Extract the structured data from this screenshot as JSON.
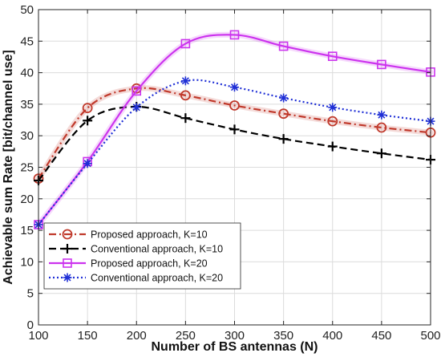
{
  "chart_data": {
    "type": "line",
    "title": "",
    "xlabel": "Number of BS antennas (N)",
    "ylabel": "Achievable sum Rate [bit/channel use]",
    "xlim": [
      100,
      500
    ],
    "ylim": [
      0,
      50
    ],
    "xticks": [
      100,
      150,
      200,
      250,
      300,
      350,
      400,
      450,
      500
    ],
    "yticks": [
      0,
      5,
      10,
      15,
      20,
      25,
      30,
      35,
      40,
      45,
      50
    ],
    "grid": true,
    "legend_position": "lower-left",
    "x": [
      100,
      150,
      200,
      250,
      300,
      350,
      400,
      450,
      500
    ],
    "series": [
      {
        "name": "Proposed approach, K=10",
        "values": [
          23.2,
          34.4,
          37.5,
          36.4,
          34.8,
          33.5,
          32.3,
          31.3,
          30.5
        ],
        "color": "#c0392b",
        "marker": "circle",
        "line_style": "dash-dot"
      },
      {
        "name": "Conventional approach, K=10",
        "values": [
          22.9,
          32.4,
          34.6,
          32.8,
          31.0,
          29.5,
          28.3,
          27.2,
          26.2
        ],
        "color": "#000000",
        "marker": "plus",
        "line_style": "dashed"
      },
      {
        "name": "Proposed approach, K=20",
        "values": [
          15.9,
          25.9,
          37.1,
          44.6,
          46.0,
          44.2,
          42.6,
          41.3,
          40.1
        ],
        "color": "#cc33ee",
        "marker": "square",
        "line_style": "solid"
      },
      {
        "name": "Conventional approach, K=20",
        "values": [
          15.9,
          25.6,
          34.5,
          38.7,
          37.7,
          36.0,
          34.5,
          33.3,
          32.3
        ],
        "color": "#1f2fd6",
        "marker": "asterisk",
        "line_style": "dotted"
      }
    ]
  }
}
